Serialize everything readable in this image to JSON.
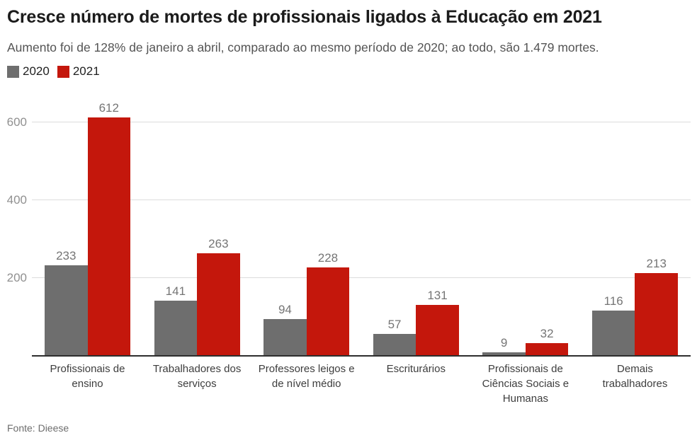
{
  "chart_data": {
    "type": "bar",
    "title": "Cresce número de mortes de profissionais ligados à Educação em 2021",
    "subtitle": "Aumento foi de 128% de janeiro a abril, comparado ao mesmo período de 2020; ao todo, são 1.479 mortes.",
    "source": "Fonte: Dieese",
    "categories": [
      "Profissionais de ensino",
      "Trabalhadores dos serviços",
      "Professores leigos e de nível médio",
      "Escriturários",
      "Profissionais de Ciências Sociais e Humanas",
      "Demais trabalhadores"
    ],
    "series": [
      {
        "name": "2020",
        "color": "#6e6e6e",
        "values": [
          233,
          141,
          94,
          57,
          9,
          116
        ]
      },
      {
        "name": "2021",
        "color": "#c4170c",
        "values": [
          612,
          263,
          228,
          131,
          32,
          213
        ]
      }
    ],
    "xlabel": "",
    "ylabel": "",
    "yticks": [
      200,
      400,
      600
    ],
    "ylim": [
      0,
      660
    ],
    "grid": true,
    "value_labels": true,
    "legend_position": "top-left",
    "colors": {
      "gridline": "#dcdcdc",
      "axis_line": "#2e2e2e",
      "tick_label": "#909090",
      "value_label": "#757575",
      "category_label": "#3d3d3d"
    }
  }
}
